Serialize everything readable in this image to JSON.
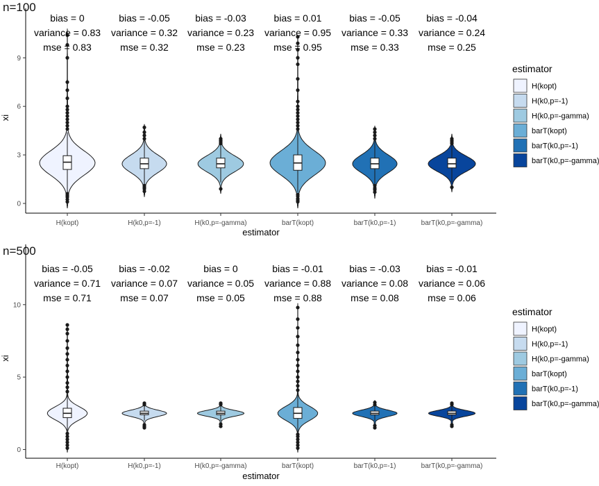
{
  "chart_data": [
    {
      "type": "violin",
      "title": "n=100",
      "xlabel": "estimator",
      "ylabel": "xi",
      "ylim": [
        -0.6,
        11.2
      ],
      "yticks": [
        0,
        3,
        6,
        9
      ],
      "categories": [
        "H(kopt)",
        "H(k0,p=-1)",
        "H(k0,p=-gamma)",
        "barT(kopt)",
        "barT(k0,p=-1)",
        "barT(k0,p=-gamma)"
      ],
      "stats": [
        {
          "bias": "bias = 0",
          "variance": "variance = 0.83",
          "mse": "mse = 0.83"
        },
        {
          "bias": "bias = -0.05",
          "variance": "variance = 0.32",
          "mse": "mse = 0.32"
        },
        {
          "bias": "bias = -0.03",
          "variance": "variance = 0.23",
          "mse": "mse = 0.23"
        },
        {
          "bias": "bias = 0.01",
          "variance": "variance = 0.95",
          "mse": "mse = 0.95"
        },
        {
          "bias": "bias = -0.05",
          "variance": "variance = 0.33",
          "mse": "mse = 0.33"
        },
        {
          "bias": "bias = -0.04",
          "variance": "variance = 0.24",
          "mse": "mse = 0.25"
        }
      ],
      "violins": [
        {
          "ymin": -0.3,
          "ymax": 10.8,
          "median": 2.55,
          "q1": 2.1,
          "q3": 2.95,
          "wlo": 0.7,
          "whi": 4.4,
          "peak": 2.5,
          "width": 1.0,
          "spread": 0.75,
          "outliers": [
            0.1,
            0.25,
            0.4,
            0.5,
            0.6,
            4.6,
            4.8,
            5.0,
            5.2,
            5.4,
            5.6,
            5.8,
            6.0,
            6.5,
            7.0,
            7.5,
            9.0,
            9.8,
            10.4
          ]
        },
        {
          "ymin": 0.4,
          "ymax": 4.9,
          "median": 2.45,
          "q1": 2.15,
          "q3": 2.8,
          "wlo": 1.2,
          "whi": 3.9,
          "peak": 2.45,
          "width": 0.8,
          "spread": 0.55,
          "outliers": [
            0.75,
            0.9,
            1.0,
            1.1,
            4.0,
            4.2,
            4.4,
            4.7
          ]
        },
        {
          "ymin": 0.6,
          "ymax": 4.3,
          "median": 2.45,
          "q1": 2.2,
          "q3": 2.8,
          "wlo": 1.3,
          "whi": 3.6,
          "peak": 2.45,
          "width": 0.82,
          "spread": 0.5,
          "outliers": [
            0.9,
            3.7,
            3.8,
            3.9,
            4.0
          ]
        },
        {
          "ymin": -0.3,
          "ymax": 10.4,
          "median": 2.5,
          "q1": 2.05,
          "q3": 3.0,
          "wlo": 0.7,
          "whi": 4.5,
          "peak": 2.5,
          "width": 1.0,
          "spread": 0.75,
          "outliers": [
            0.1,
            0.2,
            0.3,
            0.45,
            0.55,
            4.6,
            4.8,
            5.0,
            5.2,
            5.4,
            5.6,
            5.8,
            6.0,
            6.3,
            7.0,
            7.7,
            8.6,
            9.0,
            9.5,
            9.9,
            10.3
          ]
        },
        {
          "ymin": 0.3,
          "ymax": 4.8,
          "median": 2.45,
          "q1": 2.15,
          "q3": 2.8,
          "wlo": 1.2,
          "whi": 3.9,
          "peak": 2.45,
          "width": 0.8,
          "spread": 0.55,
          "outliers": [
            0.7,
            0.85,
            0.95,
            1.1,
            4.0,
            4.2,
            4.4,
            4.6
          ]
        },
        {
          "ymin": 0.7,
          "ymax": 4.3,
          "median": 2.45,
          "q1": 2.2,
          "q3": 2.8,
          "wlo": 1.3,
          "whi": 3.6,
          "peak": 2.45,
          "width": 0.85,
          "spread": 0.48,
          "outliers": [
            1.0,
            3.7,
            3.8,
            3.9,
            4.0
          ]
        }
      ]
    },
    {
      "type": "violin",
      "title": "n=500",
      "xlabel": "estimator",
      "ylabel": "xi",
      "ylim": [
        -0.6,
        13.2
      ],
      "yticks": [
        0,
        5,
        10
      ],
      "categories": [
        "H(kopt)",
        "H(k0,p=-1)",
        "H(k0,p=-gamma)",
        "barT(kopt)",
        "barT(k0,p=-1)",
        "barT(k0,p=-gamma)"
      ],
      "stats": [
        {
          "bias": "bias = -0.05",
          "variance": "variance = 0.71",
          "mse": "mse = 0.71"
        },
        {
          "bias": "bias = -0.02",
          "variance": "variance = 0.07",
          "mse": "mse = 0.07"
        },
        {
          "bias": "bias = 0",
          "variance": "variance = 0.05",
          "mse": "mse = 0.05"
        },
        {
          "bias": "bias = -0.01",
          "variance": "variance = 0.88",
          "mse": "mse = 0.88"
        },
        {
          "bias": "bias = -0.03",
          "variance": "variance = 0.08",
          "mse": "mse = 0.08"
        },
        {
          "bias": "bias = -0.01",
          "variance": "variance = 0.06",
          "mse": "mse = 0.06"
        }
      ],
      "violins": [
        {
          "ymin": -0.2,
          "ymax": 8.7,
          "median": 2.5,
          "q1": 2.2,
          "q3": 2.85,
          "wlo": 1.3,
          "whi": 3.8,
          "peak": 2.5,
          "width": 0.72,
          "spread": 0.45,
          "outliers": [
            0.1,
            0.3,
            0.5,
            0.7,
            0.9,
            1.1,
            4.0,
            4.3,
            4.6,
            5.0,
            5.4,
            5.8,
            6.2,
            6.6,
            7.0,
            7.5,
            8.0,
            8.3,
            8.6
          ]
        },
        {
          "ymin": 1.4,
          "ymax": 3.3,
          "median": 2.5,
          "q1": 2.4,
          "q3": 2.65,
          "wlo": 2.0,
          "whi": 3.0,
          "peak": 2.5,
          "width": 0.8,
          "spread": 0.22,
          "outliers": [
            1.5,
            1.6,
            1.7,
            3.1,
            3.2
          ]
        },
        {
          "ymin": 1.5,
          "ymax": 3.3,
          "median": 2.5,
          "q1": 2.4,
          "q3": 2.65,
          "wlo": 2.0,
          "whi": 3.0,
          "peak": 2.5,
          "width": 0.84,
          "spread": 0.2,
          "outliers": [
            1.6,
            1.75,
            3.1,
            3.2
          ]
        },
        {
          "ymin": -0.2,
          "ymax": 10.1,
          "median": 2.5,
          "q1": 2.15,
          "q3": 2.9,
          "wlo": 1.2,
          "whi": 3.9,
          "peak": 2.5,
          "width": 0.72,
          "spread": 0.48,
          "outliers": [
            0.1,
            0.3,
            0.5,
            0.7,
            0.9,
            1.05,
            4.1,
            4.4,
            4.7,
            5.0,
            5.4,
            5.8,
            6.2,
            6.7,
            7.2,
            7.8,
            8.4,
            9.0,
            9.8
          ]
        },
        {
          "ymin": 1.4,
          "ymax": 3.4,
          "median": 2.5,
          "q1": 2.4,
          "q3": 2.65,
          "wlo": 2.0,
          "whi": 3.0,
          "peak": 2.5,
          "width": 0.8,
          "spread": 0.22,
          "outliers": [
            1.5,
            1.65,
            3.1,
            3.25
          ]
        },
        {
          "ymin": 1.5,
          "ymax": 3.3,
          "median": 2.5,
          "q1": 2.4,
          "q3": 2.65,
          "wlo": 2.0,
          "whi": 3.0,
          "peak": 2.5,
          "width": 0.84,
          "spread": 0.2,
          "outliers": [
            1.6,
            1.7,
            3.1,
            3.2
          ]
        }
      ]
    }
  ],
  "legend": {
    "title": "estimator",
    "items": [
      {
        "label": "H(kopt)",
        "color": "#eff3ff"
      },
      {
        "label": "H(k0,p=-1)",
        "color": "#c6dbef"
      },
      {
        "label": "H(k0,p=-gamma)",
        "color": "#9ecae1"
      },
      {
        "label": "barT(kopt)",
        "color": "#6baed6"
      },
      {
        "label": "barT(k0,p=-1)",
        "color": "#2171b5"
      },
      {
        "label": "barT(k0,p=-gamma)",
        "color": "#08459c"
      }
    ]
  }
}
